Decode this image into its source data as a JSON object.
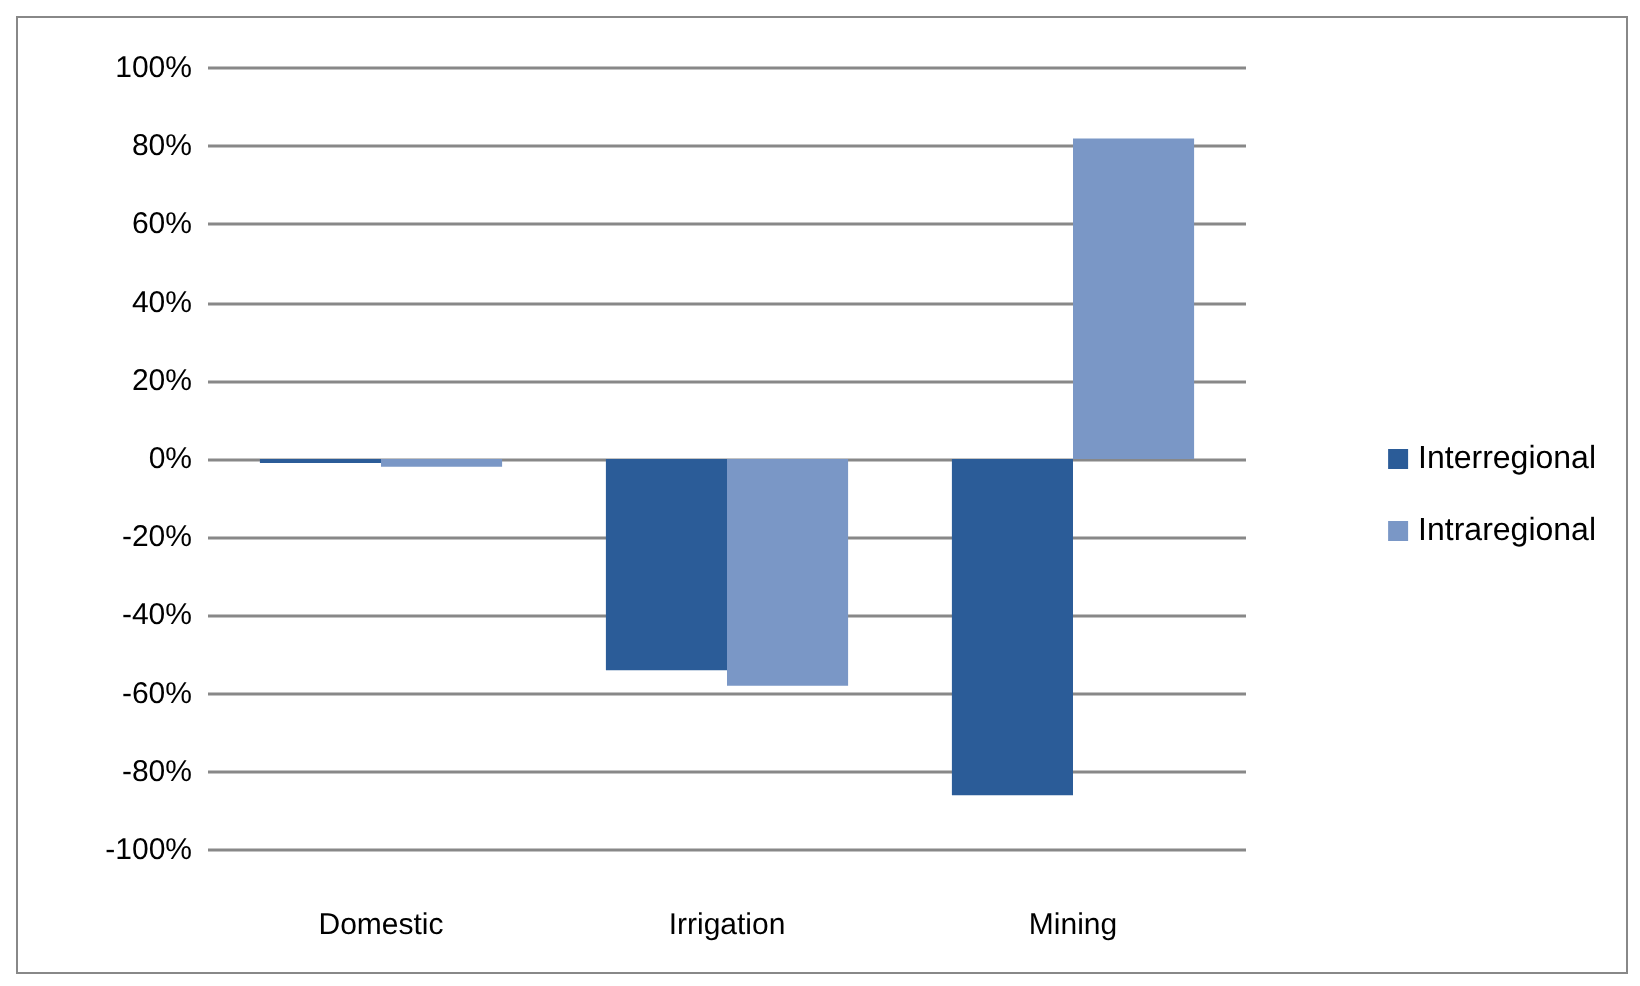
{
  "chart_data": {
    "type": "bar",
    "categories": [
      "Domestic",
      "Irrigation",
      "Mining"
    ],
    "series": [
      {
        "name": "Interregional",
        "color": "#2b5c98",
        "values": [
          -1,
          -54,
          -86
        ]
      },
      {
        "name": "Intraregional",
        "color": "#7a97c6",
        "values": [
          -2,
          -58,
          82
        ]
      }
    ],
    "ylim": [
      -100,
      100
    ],
    "yticks": [
      {
        "value": -100,
        "label": "-100%"
      },
      {
        "value": -80,
        "label": "-80%"
      },
      {
        "value": -60,
        "label": "-60%"
      },
      {
        "value": -40,
        "label": "-40%"
      },
      {
        "value": -20,
        "label": "-20%"
      },
      {
        "value": 0,
        "label": "0%"
      },
      {
        "value": 20,
        "label": "20%"
      },
      {
        "value": 40,
        "label": "40%"
      },
      {
        "value": 60,
        "label": "60%"
      },
      {
        "value": 80,
        "label": "80%"
      },
      {
        "value": 100,
        "label": "100%"
      }
    ],
    "grid": "y",
    "legend": "right"
  }
}
